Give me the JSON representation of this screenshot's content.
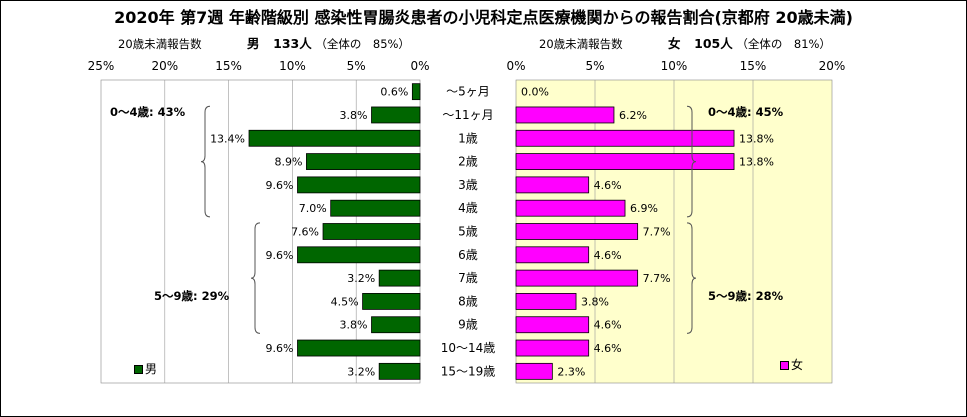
{
  "title": "2020年 第7週 年齢階級別 感染性胃腸炎患者の小児科定点医療機関からの報告割合(京都府 20歳未満)",
  "male": {
    "header_count_label": "20歳未満報告数",
    "header_sex": "男",
    "header_count": "133人",
    "header_share": "（全体の　85%）",
    "legend": "男",
    "group_labels": [
      "0～4歳: 43%",
      "5～9歳: 29%"
    ]
  },
  "female": {
    "header_count_label": "20歳未満報告数",
    "header_sex": "女",
    "header_count": "105人",
    "header_share": "（全体の　81%）",
    "legend": "女",
    "group_labels": [
      "0～4歳: 45%",
      "5～9歳: 28%"
    ]
  },
  "colors": {
    "male": "#006600",
    "female": "#ff00ff",
    "female_plot_bg": "#ffffcc"
  },
  "chart_data": [
    {
      "type": "bar",
      "orientation": "horizontal",
      "direction": "right-to-left",
      "series": [
        {
          "name": "男",
          "values": [
            0.6,
            3.8,
            13.4,
            8.9,
            9.6,
            7.0,
            7.6,
            9.6,
            3.2,
            4.5,
            3.8,
            9.6,
            3.2
          ]
        }
      ],
      "value_labels": [
        "0.6%",
        "3.8%",
        "13.4%",
        "8.9%",
        "9.6%",
        "7.0%",
        "7.6%",
        "9.6%",
        "3.2%",
        "4.5%",
        "3.8%",
        "9.6%",
        "3.2%"
      ],
      "xlim": [
        0,
        25
      ],
      "xticks": [
        "25%",
        "20%",
        "15%",
        "10%",
        "5%",
        "0%"
      ],
      "categories": [
        "～5ヶ月",
        "～11ヶ月",
        "1歳",
        "2歳",
        "3歳",
        "4歳",
        "5歳",
        "6歳",
        "7歳",
        "8歳",
        "9歳",
        "10～14歳",
        "15～19歳"
      ],
      "grid": true,
      "legend_position": "bottom-left"
    },
    {
      "type": "bar",
      "orientation": "horizontal",
      "direction": "left-to-right",
      "series": [
        {
          "name": "女",
          "values": [
            0.0,
            6.2,
            13.8,
            13.8,
            4.6,
            6.9,
            7.7,
            4.6,
            7.7,
            3.8,
            4.6,
            4.6,
            2.3
          ]
        }
      ],
      "value_labels": [
        "0.0%",
        "6.2%",
        "13.8%",
        "13.8%",
        "4.6%",
        "6.9%",
        "7.7%",
        "4.6%",
        "7.7%",
        "3.8%",
        "4.6%",
        "4.6%",
        "2.3%"
      ],
      "xlim": [
        0,
        20
      ],
      "xticks": [
        "0%",
        "5%",
        "10%",
        "15%",
        "20%"
      ],
      "categories": [
        "～5ヶ月",
        "～11ヶ月",
        "1歳",
        "2歳",
        "3歳",
        "4歳",
        "5歳",
        "6歳",
        "7歳",
        "8歳",
        "9歳",
        "10～14歳",
        "15～19歳"
      ],
      "grid": true,
      "legend_position": "bottom-right"
    }
  ]
}
